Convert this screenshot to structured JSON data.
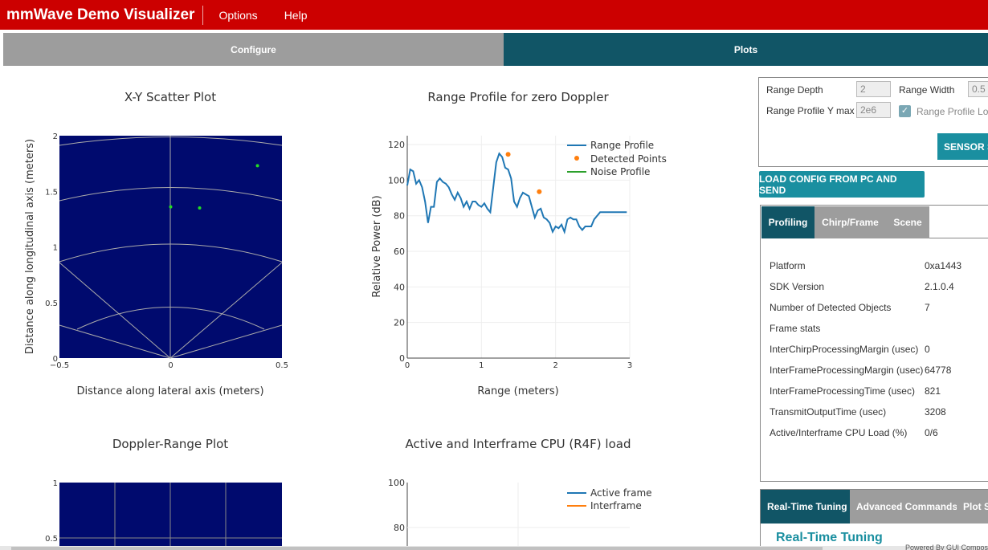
{
  "app": {
    "title": "mmWave Demo Visualizer",
    "menus": [
      "Options",
      "Help"
    ]
  },
  "mode_tabs": {
    "configure": "Configure",
    "plots": "Plots"
  },
  "scatter_plot": {
    "title": "X-Y Scatter Plot",
    "xlabel": "Distance along lateral axis (meters)",
    "ylabel": "Distance along longitudinal axis (meters)",
    "xticks": [
      "−0.5",
      "0",
      "0.5"
    ],
    "yticks": [
      "0",
      "0.5",
      "1",
      "1.5",
      "2"
    ],
    "bg_color": "#000a6e",
    "point_color": "#22dd22"
  },
  "range_plot": {
    "title": "Range Profile for zero Doppler",
    "xlabel": "Range (meters)",
    "ylabel": "Relative Power (dB)",
    "xticks": [
      "0",
      "1",
      "2",
      "3"
    ],
    "yticks": [
      "0",
      "20",
      "40",
      "60",
      "80",
      "100",
      "120"
    ],
    "legend": [
      "Range Profile",
      "Detected Points",
      "Noise Profile"
    ],
    "colors": [
      "#1f77b4",
      "#ff7f0e",
      "#2ca02c"
    ]
  },
  "doppler_plot": {
    "title": "Doppler-Range Plot",
    "yticks": [
      "1",
      "0.5"
    ]
  },
  "cpu_plot": {
    "title": "Active and Interframe CPU (R4F) load",
    "yticks": [
      "100",
      "80"
    ],
    "legend": [
      "Active frame",
      "Interframe"
    ]
  },
  "chart_data": [
    {
      "type": "scatter",
      "title": "X-Y Scatter Plot",
      "xlabel": "Distance along lateral axis (meters)",
      "ylabel": "Distance along longitudinal axis (meters)",
      "xlim": [
        -0.5,
        0.5
      ],
      "ylim": [
        0,
        2
      ],
      "series": [
        {
          "x": [
            0.0,
            0.13,
            0.39
          ],
          "y": [
            1.36,
            1.35,
            1.73
          ]
        }
      ]
    },
    {
      "type": "line",
      "title": "Range Profile for zero Doppler",
      "xlabel": "Range (meters)",
      "ylabel": "Relative Power (dB)",
      "xlim": [
        0,
        3
      ],
      "ylim": [
        0,
        125
      ],
      "series": [
        {
          "name": "Range Profile",
          "x": [
            0.0,
            0.04,
            0.08,
            0.12,
            0.16,
            0.2,
            0.24,
            0.28,
            0.32,
            0.36,
            0.4,
            0.44,
            0.48,
            0.52,
            0.56,
            0.6,
            0.64,
            0.68,
            0.72,
            0.76,
            0.8,
            0.84,
            0.88,
            0.92,
            0.96,
            1.0,
            1.04,
            1.08,
            1.12,
            1.16,
            1.2,
            1.24,
            1.28,
            1.32,
            1.36,
            1.4,
            1.44,
            1.48,
            1.52,
            1.56,
            1.6,
            1.64,
            1.68,
            1.72,
            1.76,
            1.8,
            1.84,
            1.88,
            1.92,
            1.96,
            2.0,
            2.04,
            2.08,
            2.12,
            2.16,
            2.2,
            2.24,
            2.28,
            2.32,
            2.36,
            2.4,
            2.44,
            2.48,
            2.52,
            2.56,
            2.6,
            2.64,
            2.68,
            2.72,
            2.76,
            2.8,
            2.84,
            2.88,
            2.92,
            2.96,
            3.0
          ],
          "y": [
            97,
            106,
            105,
            98,
            100,
            96,
            88,
            76,
            85,
            85,
            99,
            101,
            99,
            98,
            96,
            92,
            89,
            93,
            90,
            85,
            88,
            84,
            88,
            88,
            86,
            85,
            87,
            84,
            82,
            96,
            110,
            115,
            113,
            107,
            106,
            101,
            88,
            85,
            90,
            93,
            92,
            91,
            85,
            79,
            83,
            84,
            79,
            78,
            76,
            71,
            74,
            73,
            75,
            71,
            78,
            79,
            78,
            78,
            74,
            72,
            74,
            74,
            74,
            78,
            80,
            82,
            82,
            82,
            82,
            82,
            82,
            82,
            82,
            82,
            82,
            82
          ]
        },
        {
          "name": "Detected Points",
          "x": [
            1.36,
            1.78
          ],
          "y": [
            114.5,
            93.5
          ]
        },
        {
          "name": "Noise Profile",
          "x": [],
          "y": []
        }
      ]
    },
    {
      "type": "heatmap",
      "title": "Doppler-Range Plot",
      "ylim": [
        0.5,
        1
      ]
    },
    {
      "type": "line",
      "title": "Active and Interframe CPU (R4F) load",
      "ylim": [
        80,
        100
      ],
      "series": [
        {
          "name": "Active frame",
          "x": [],
          "y": []
        },
        {
          "name": "Interframe",
          "x": [],
          "y": []
        }
      ]
    }
  ],
  "settings": {
    "range_depth_label": "Range Depth",
    "range_depth_value": "2",
    "range_width_label": "Range Width",
    "range_width_value": "0.5",
    "range_profile_ymax_label": "Range Profile Y max",
    "range_profile_ymax_value": "2e6",
    "range_profile_log_label": "Range Profile Lo",
    "sensor_button": "SENSOR S"
  },
  "load_button": "LOAD CONFIG FROM PC AND SEND",
  "profile_tabs": [
    "Profiling",
    "Chirp/Frame",
    "Scene"
  ],
  "stats": [
    {
      "label": "Platform",
      "value": "0xa1443"
    },
    {
      "label": "SDK Version",
      "value": "2.1.0.4"
    },
    {
      "label": "Number of Detected Objects",
      "value": "7"
    },
    {
      "label": "Frame stats",
      "value": ""
    },
    {
      "label": "InterChirpProcessingMargin (usec)",
      "value": "0"
    },
    {
      "label": "InterFrameProcessingMargin (usec)",
      "value": "64778"
    },
    {
      "label": "InterFrameProcessingTime (usec)",
      "value": "821"
    },
    {
      "label": "TransmitOutputTime (usec)",
      "value": "3208"
    },
    {
      "label": "Active/Interframe CPU Load (%)",
      "value": "0/6"
    }
  ],
  "realtime_tabs": [
    "Real-Time Tuning",
    "Advanced Commands",
    "Plot S"
  ],
  "realtime_heading": "Real-Time Tuning",
  "footer": "Powered By GUI Composer™"
}
